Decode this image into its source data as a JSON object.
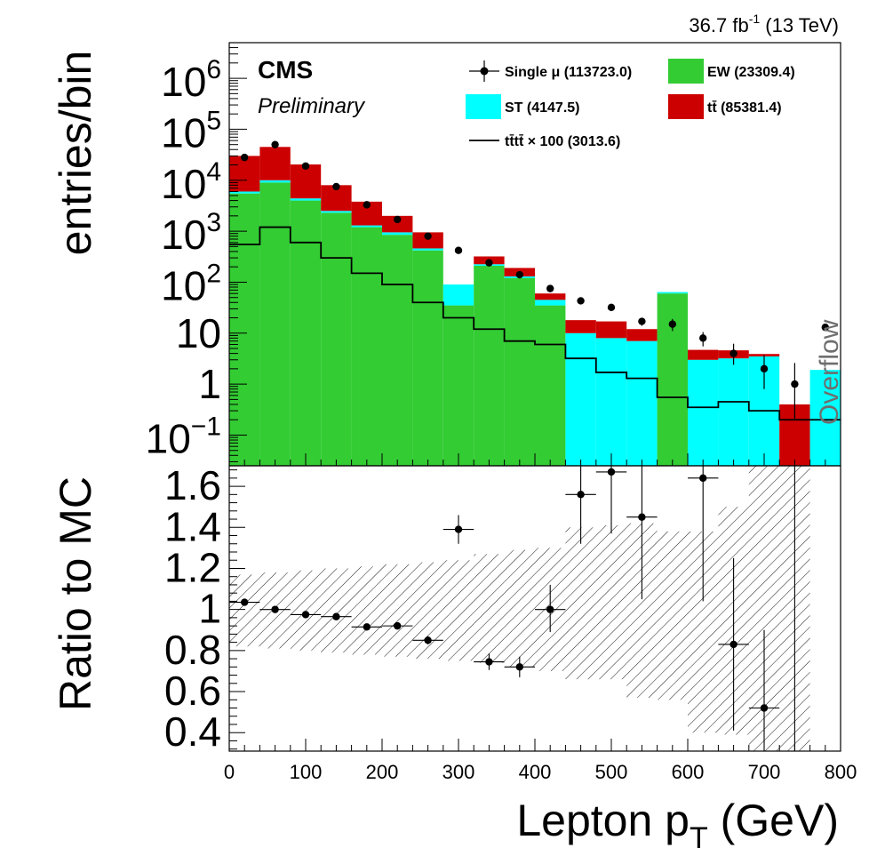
{
  "header": {
    "lumi_base": "36.7 fb",
    "lumi_exp": "-1",
    "lumi_energy": " (13 TeV)",
    "cms": "CMS",
    "preliminary": "Preliminary",
    "overflow": "Overflow"
  },
  "chart_data": [
    {
      "type": "bar",
      "subtype": "stacked-histogram",
      "scale": "log",
      "ylabel": "entries/bin",
      "xlim": [
        0,
        800
      ],
      "ylim": [
        0.025,
        5000000
      ],
      "bin_edges": [
        0,
        40,
        80,
        120,
        160,
        200,
        240,
        280,
        320,
        360,
        400,
        440,
        480,
        520,
        560,
        600,
        640,
        680,
        720,
        760,
        800
      ],
      "y_ticks": [
        {
          "label": "10",
          "exp": "6",
          "value": 1000000
        },
        {
          "label": "10",
          "exp": "5",
          "value": 100000
        },
        {
          "label": "10",
          "exp": "4",
          "value": 10000
        },
        {
          "label": "10",
          "exp": "3",
          "value": 1000
        },
        {
          "label": "10",
          "exp": "2",
          "value": 100
        },
        {
          "label": "10",
          "exp": "",
          "value": 10
        },
        {
          "label": "1",
          "exp": "",
          "value": 1
        },
        {
          "label": "10",
          "exp": "−1",
          "value": 0.1
        }
      ],
      "stack": [
        {
          "name": "EW",
          "color": "#33cc33",
          "values": [
            5500,
            9000,
            4000,
            2300,
            1200,
            850,
            420,
            35,
            210,
            120,
            35,
            0,
            0,
            0,
            60,
            0,
            0,
            0,
            0,
            0
          ]
        },
        {
          "name": "ST",
          "color": "#00ffff",
          "values": [
            500,
            1000,
            400,
            200,
            100,
            100,
            40,
            55,
            15,
            10,
            10,
            10,
            8,
            7,
            4,
            3,
            3.2,
            3.5,
            0,
            1.9
          ]
        },
        {
          "name": "tt̄",
          "color": "#cc0000",
          "values": [
            24000,
            35000,
            16000,
            5500,
            2500,
            1050,
            490,
            0,
            95,
            60,
            15,
            8,
            9,
            5,
            0,
            1.7,
            1.4,
            0.4,
            0.4,
            0
          ]
        }
      ],
      "signal": {
        "name": "tt̄tt̄ × 100",
        "color": "#000000",
        "values": [
          550,
          1200,
          600,
          300,
          150,
          90,
          40,
          20,
          12,
          7,
          6,
          3.2,
          1.7,
          1.3,
          0.55,
          0.35,
          0.45,
          0.3,
          0.2,
          0.2
        ]
      },
      "data": {
        "name": "Single μ",
        "x": [
          20,
          60,
          100,
          140,
          180,
          220,
          260,
          300,
          340,
          380,
          420,
          460,
          500,
          540,
          580,
          620,
          660,
          700,
          740,
          780
        ],
        "y": [
          28000,
          50000,
          19000,
          7500,
          3300,
          1700,
          800,
          420,
          240,
          140,
          75,
          43,
          32,
          17,
          15,
          8,
          4,
          2,
          1,
          13
        ],
        "err_low": [
          0,
          0,
          0,
          0,
          0,
          0,
          0,
          0,
          0,
          0,
          0,
          5,
          5,
          3,
          4,
          2.5,
          1.6,
          1.2,
          0.8,
          0
        ],
        "err_high": [
          0,
          0,
          0,
          0,
          0,
          0,
          0,
          0,
          0,
          0,
          0,
          5,
          5,
          3,
          4,
          2.5,
          2.2,
          1.7,
          1.6,
          0
        ]
      },
      "legend": [
        {
          "label": "Single  μ (113723.0)",
          "kind": "marker",
          "color": "#000000"
        },
        {
          "label": "EW (23309.4)",
          "kind": "fill",
          "color": "#33cc33"
        },
        {
          "label": "ST (4147.5)",
          "kind": "fill",
          "color": "#00ffff"
        },
        {
          "label": "tt̄ (85381.4)",
          "kind": "fill",
          "color": "#cc0000"
        },
        {
          "label": "tt̄tt̄ × 100 (3013.6)",
          "kind": "line",
          "color": "#000000"
        }
      ],
      "legend_placement": "top-right"
    },
    {
      "type": "scatter",
      "subtype": "ratio-with-uncertainty-band",
      "ylabel": "Ratio to MC",
      "xlabel": "Lepton p",
      "xlabel_sub": "T",
      "xlabel_unit": " (GeV)",
      "xlim": [
        0,
        800
      ],
      "ylim": [
        0.31,
        1.7
      ],
      "x_ticks": [
        "0",
        "100",
        "200",
        "300",
        "400",
        "500",
        "600",
        "700",
        "800"
      ],
      "y_ticks": [
        "0.4",
        "0.6",
        "0.8",
        "1",
        "1.2",
        "1.4",
        "1.6"
      ],
      "band": {
        "bin_edges": [
          0,
          40,
          80,
          120,
          160,
          200,
          240,
          280,
          320,
          360,
          400,
          440,
          480,
          520,
          560,
          600,
          640,
          680,
          720,
          760
        ],
        "low": [
          0.82,
          0.81,
          0.8,
          0.79,
          0.78,
          0.77,
          0.76,
          0.75,
          0.74,
          0.72,
          0.7,
          0.66,
          0.66,
          0.57,
          0.56,
          0.4,
          0.39,
          0.0,
          0.0
        ],
        "high": [
          1.17,
          1.18,
          1.19,
          1.2,
          1.21,
          1.22,
          1.23,
          1.24,
          1.27,
          1.29,
          1.3,
          1.4,
          1.41,
          1.42,
          1.38,
          1.38,
          1.5,
          1.7,
          1.7
        ]
      },
      "points": {
        "x": [
          20,
          60,
          100,
          140,
          180,
          220,
          260,
          300,
          340,
          380,
          420,
          460,
          500,
          540,
          620,
          660,
          700
        ],
        "y": [
          1.035,
          1.0,
          0.975,
          0.965,
          0.915,
          0.92,
          0.85,
          1.39,
          0.745,
          0.72,
          1.0,
          1.56,
          1.67,
          1.45,
          1.64,
          0.83,
          0.52
        ],
        "err_low": [
          0.01,
          0.01,
          0.01,
          0.01,
          0.01,
          0.01,
          0.02,
          0.07,
          0.04,
          0.05,
          0.11,
          0.24,
          0.3,
          0.4,
          0.6,
          0.42,
          0.4
        ],
        "err_high": [
          0.01,
          0.01,
          0.01,
          0.01,
          0.01,
          0.01,
          0.02,
          0.07,
          0.04,
          0.05,
          0.12,
          0.3,
          0.4,
          0.5,
          0.4,
          0.42,
          0.38
        ]
      },
      "extra_errorbar_x": 740
    }
  ]
}
